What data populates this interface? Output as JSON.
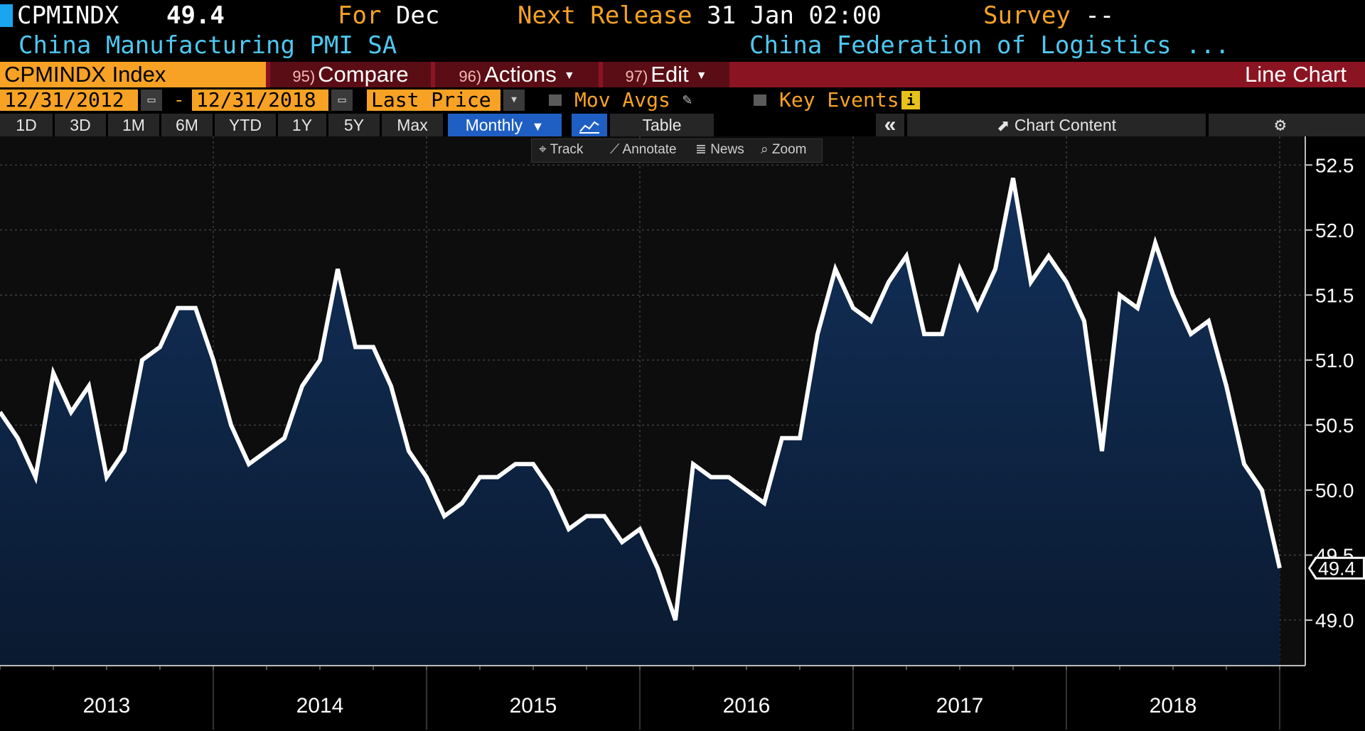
{
  "header": {
    "ticker": "CPMINDX",
    "last_value": "49.4",
    "for_label": "For",
    "for_value": "Dec",
    "next_release_label": "Next Release",
    "next_release_value": "31 Jan 02:00",
    "survey_label": "Survey",
    "survey_value": "--",
    "description": "China Manufacturing PMI SA",
    "source": "China Federation of Logistics ..."
  },
  "function_bar": {
    "security": "CPMINDX Index",
    "compare_num": "95)",
    "compare_label": "Compare",
    "actions_num": "96)",
    "actions_label": "Actions",
    "edit_num": "97)",
    "edit_label": "Edit",
    "chart_type": "Line Chart"
  },
  "date_row": {
    "start_date": "12/31/2012",
    "separator": "-",
    "end_date": "12/31/2018",
    "price_field": "Last Price",
    "mov_avgs_label": "Mov Avgs",
    "key_events_label": "Key Events"
  },
  "range_bar": {
    "ranges": [
      "1D",
      "3D",
      "1M",
      "6M",
      "YTD",
      "1Y",
      "5Y",
      "Max"
    ],
    "frequency": "Monthly",
    "table_label": "Table",
    "collapse_label": "«",
    "chart_content_label": "Chart Content"
  },
  "toolbar": {
    "track": "Track",
    "annotate": "Annotate",
    "news": "News",
    "zoom": "Zoom"
  },
  "colors": {
    "accent_orange": "#f7a224",
    "accent_cyan": "#4fc8f0",
    "function_bar_red": "#8b1423",
    "selected_blue": "#1f5fc4",
    "line": "#ffffff",
    "area_fill": "#0d2340"
  },
  "chart_data": {
    "type": "area",
    "title": "",
    "xlabel": "",
    "ylabel": "",
    "ylim": [
      48.65,
      52.72
    ],
    "y_ticks": [
      "49.0",
      "49.5",
      "50.0",
      "50.5",
      "51.0",
      "51.5",
      "52.0",
      "52.5"
    ],
    "x_year_labels": [
      "2013",
      "2014",
      "2015",
      "2016",
      "2017",
      "2018"
    ],
    "last_value_label": "49.4",
    "grid": true,
    "series": [
      {
        "values": [
          50.6,
          50.4,
          50.1,
          50.9,
          50.6,
          50.8,
          50.1,
          50.3,
          51.0,
          51.1,
          51.4,
          51.4,
          51.0,
          50.5,
          50.2,
          50.3,
          50.4,
          50.8,
          51.0,
          51.7,
          51.1,
          51.1,
          50.8,
          50.3,
          50.1,
          49.8,
          49.9,
          50.1,
          50.1,
          50.2,
          50.2,
          50.0,
          49.7,
          49.8,
          49.8,
          49.6,
          49.7,
          49.4,
          49.0,
          50.2,
          50.1,
          50.1,
          50.0,
          49.9,
          50.4,
          50.4,
          51.2,
          51.7,
          51.4,
          51.3,
          51.6,
          51.8,
          51.2,
          51.2,
          51.7,
          51.4,
          51.7,
          52.4,
          51.6,
          51.8,
          51.6,
          51.3,
          50.3,
          51.5,
          51.4,
          51.9,
          51.5,
          51.2,
          51.3,
          50.8,
          50.2,
          50.0,
          49.4
        ]
      }
    ]
  }
}
